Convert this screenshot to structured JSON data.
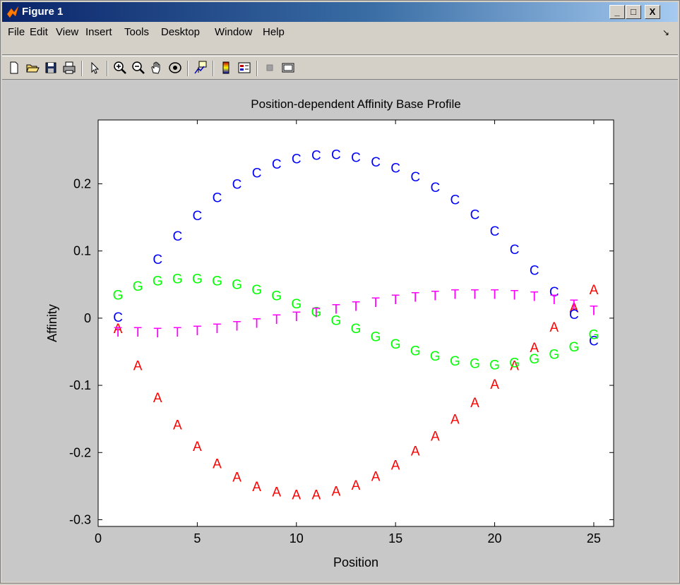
{
  "window": {
    "title": "Figure 1",
    "minimize": "_",
    "maximize": "□",
    "close": "X"
  },
  "menu": {
    "items": [
      "File",
      "Edit",
      "View",
      "Insert",
      "Tools",
      "Desktop",
      "Window",
      "Help"
    ]
  },
  "toolbar": {
    "icons": [
      "new-file-icon",
      "open-folder-icon",
      "save-icon",
      "print-icon",
      "pointer-icon",
      "zoom-in-icon",
      "zoom-out-icon",
      "pan-hand-icon",
      "rotate-3d-icon",
      "data-cursor-icon",
      "colorbar-icon",
      "legend-icon",
      "hide-plot-tools-icon",
      "show-plot-tools-icon"
    ]
  },
  "chart_data": {
    "type": "scatter",
    "title": "Position-dependent Affinity Base Profile",
    "xlabel": "Position",
    "ylabel": "Affinity",
    "xlim": [
      0,
      26
    ],
    "ylim": [
      -0.31,
      0.295
    ],
    "xticks": [
      0,
      5,
      10,
      15,
      20,
      25
    ],
    "yticks": [
      -0.3,
      -0.2,
      -0.1,
      0,
      0.1,
      0.2
    ],
    "ytick_labels": [
      "-0.3",
      "-0.2",
      "-0.1",
      "0",
      "0.1",
      "0.2"
    ],
    "grid": false,
    "x": [
      1,
      2,
      3,
      4,
      5,
      6,
      7,
      8,
      9,
      10,
      11,
      12,
      13,
      14,
      15,
      16,
      17,
      18,
      19,
      20,
      21,
      22,
      23,
      24,
      25
    ],
    "series": [
      {
        "marker": "A",
        "color": "#ff0000",
        "values": [
          -0.015,
          -0.07,
          -0.118,
          -0.158,
          -0.19,
          -0.216,
          -0.236,
          -0.25,
          -0.258,
          -0.262,
          -0.262,
          -0.257,
          -0.248,
          -0.235,
          -0.218,
          -0.197,
          -0.175,
          -0.15,
          -0.125,
          -0.098,
          -0.07,
          -0.043,
          -0.013,
          0.016,
          0.043
        ]
      },
      {
        "marker": "C",
        "color": "#0000ff",
        "values": [
          0.002,
          null,
          0.088,
          0.123,
          0.153,
          0.18,
          0.2,
          0.217,
          0.23,
          0.238,
          0.243,
          0.244,
          0.24,
          0.233,
          0.224,
          0.211,
          0.195,
          0.177,
          0.155,
          0.13,
          0.103,
          0.072,
          0.04,
          0.006,
          -0.033
        ]
      },
      {
        "marker": "G",
        "color": "#00ff00",
        "values": [
          0.035,
          0.048,
          0.056,
          0.059,
          0.059,
          0.056,
          0.051,
          0.043,
          0.034,
          0.022,
          0.01,
          -0.003,
          -0.015,
          -0.027,
          -0.038,
          -0.048,
          -0.056,
          -0.063,
          -0.067,
          -0.069,
          -0.066,
          -0.06,
          -0.053,
          -0.042,
          -0.024
        ]
      },
      {
        "marker": "T",
        "color": "#ff00ff",
        "values": [
          -0.02,
          -0.02,
          -0.021,
          -0.02,
          -0.018,
          -0.015,
          -0.011,
          -0.007,
          -0.001,
          0.003,
          0.009,
          0.014,
          0.018,
          0.024,
          0.028,
          0.032,
          0.034,
          0.036,
          0.036,
          0.036,
          0.035,
          0.033,
          0.028,
          0.021,
          0.012
        ]
      }
    ]
  }
}
